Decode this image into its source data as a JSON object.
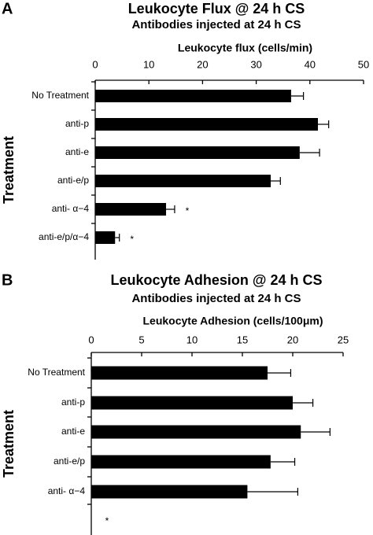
{
  "chart_data": [
    {
      "type": "hbar",
      "panel_label": "A",
      "title": "Leukocyte Flux @ 24 h CS",
      "subtitle": "Antibodies injected at 24 h CS",
      "x_label": "Leukocyte flux (cells/min)",
      "y_label": "Treatment",
      "categories": [
        "No Treatment",
        "anti-p",
        "anti-e",
        "anti-e/p",
        "anti- α−4",
        "anti-e/p/α−4"
      ],
      "values": [
        36.5,
        41.5,
        38.1,
        32.7,
        13.2,
        3.7
      ],
      "errors": [
        2.3,
        2.0,
        3.7,
        1.8,
        1.6,
        0.8
      ],
      "color": "#000000",
      "xlim": [
        0,
        50
      ],
      "xticks": [
        0,
        10,
        20,
        30,
        40,
        50
      ],
      "annotations": [
        {
          "text": "*",
          "category": "anti- α−4"
        },
        {
          "text": "*",
          "category": "anti-e/p/α−4"
        }
      ]
    },
    {
      "type": "hbar",
      "panel_label": "B",
      "title": "Leukocyte Adhesion @ 24 h CS",
      "subtitle": "Antibodies injected at 24 h CS",
      "x_label": "Leukocyte Adhesion (cells/100μm)",
      "y_label": "Treatment",
      "categories": [
        "No Treatment",
        "anti-p",
        "anti-e",
        "anti-e/p",
        "anti- α−4",
        null
      ],
      "values": [
        17.5,
        20.0,
        20.8,
        17.8,
        15.5,
        null
      ],
      "errors": [
        2.3,
        2.0,
        2.9,
        2.4,
        5.0,
        null
      ],
      "color": "#000000",
      "xlim": [
        0,
        25
      ],
      "xticks": [
        0,
        5,
        10,
        15,
        20,
        25
      ],
      "annotations": [
        {
          "text": "*",
          "category": null
        }
      ]
    }
  ]
}
